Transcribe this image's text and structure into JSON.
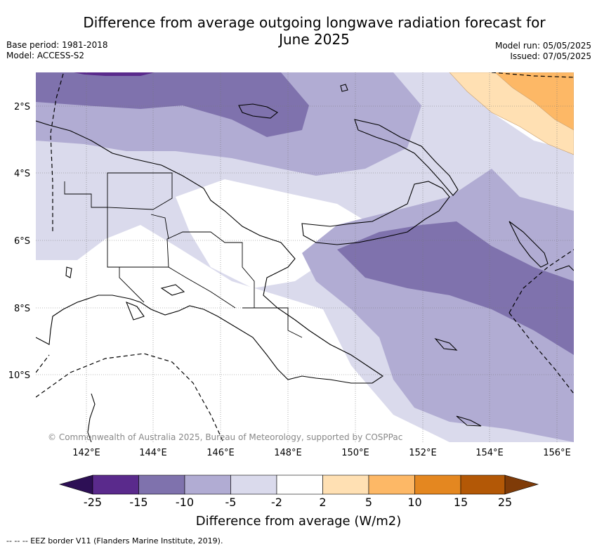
{
  "title_line1": "Difference from average outgoing longwave radiation forecast for",
  "title_line2": "June 2025",
  "base_period": "Base period: 1981-2018",
  "model": "Model: ACCESS-S2",
  "model_run": "Model run: 05/05/2025",
  "issued": "Issued: 07/05/2025",
  "lat_labels": [
    "2°S",
    "4°S",
    "6°S",
    "8°S",
    "10°S"
  ],
  "lon_labels": [
    "142°E",
    "144°E",
    "146°E",
    "148°E",
    "150°E",
    "152°E",
    "154°E",
    "156°E"
  ],
  "copyright": "© Commonwealth of Australia 2025, Bureau of Meteorology, supported by COSPPac",
  "colorbar": {
    "ticks": [
      "-25",
      "-15",
      "-10",
      "-5",
      "-2",
      "2",
      "5",
      "10",
      "15",
      "25"
    ],
    "label": "Difference from average (W/m2)",
    "colors": [
      "#2d0f55",
      "#5a2a8c",
      "#7f72ad",
      "#b1acd3",
      "#dadaec",
      "#ffffff",
      "#ffe0b3",
      "#fdb866",
      "#e48720",
      "#b35806",
      "#7f3b08"
    ]
  },
  "footer": "--  --  -- EEZ border V11 (Flanders Marine Institute, 2019)."
}
